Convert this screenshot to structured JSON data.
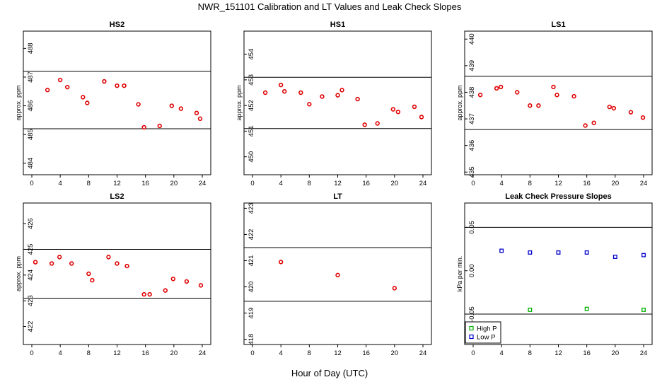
{
  "title": "NWR_151101  Calibration and LT Values and Leak Check Slopes",
  "xlabel": "Hour of Day (UTC)",
  "chart_data": [
    {
      "type": "scatter",
      "title": "HS2",
      "ylabel": "approx. ppm",
      "xlim": [
        0,
        24
      ],
      "ylim": [
        483.6,
        488.6
      ],
      "yticks": [
        484,
        485,
        486,
        487,
        488
      ],
      "xticks": [
        0,
        4,
        8,
        12,
        16,
        20,
        24
      ],
      "hlines": [
        487.2,
        485.2
      ],
      "series": [
        {
          "marker": "circle",
          "color": "#e00000",
          "x": [
            2.2,
            4.0,
            5.0,
            7.2,
            7.8,
            10.2,
            12.0,
            13.0,
            15.0,
            15.8,
            18.0,
            19.7,
            21.0,
            23.2,
            23.7
          ],
          "y": [
            486.55,
            486.9,
            486.65,
            486.3,
            486.1,
            486.85,
            486.7,
            486.7,
            486.05,
            485.25,
            485.3,
            486.0,
            485.9,
            485.75,
            485.55
          ]
        }
      ]
    },
    {
      "type": "scatter",
      "title": "HS1",
      "ylabel": "approx. ppm",
      "xlim": [
        0,
        24
      ],
      "ylim": [
        449.3,
        454.9
      ],
      "yticks": [
        450,
        451,
        452,
        453,
        454
      ],
      "xticks": [
        0,
        4,
        8,
        12,
        16,
        20,
        24
      ],
      "hlines": [
        453.1,
        451.1
      ],
      "series": [
        {
          "marker": "circle",
          "color": "#e00000",
          "x": [
            1.8,
            4.0,
            4.5,
            6.8,
            8.0,
            9.8,
            12.0,
            12.6,
            14.8,
            15.8,
            17.6,
            19.8,
            20.5,
            22.8,
            23.8
          ],
          "y": [
            452.5,
            452.8,
            452.55,
            452.5,
            452.05,
            452.35,
            452.4,
            452.6,
            452.25,
            451.25,
            451.3,
            451.85,
            451.75,
            451.95,
            451.55
          ]
        }
      ]
    },
    {
      "type": "scatter",
      "title": "LS1",
      "ylabel": "approx. ppm",
      "xlim": [
        0,
        24
      ],
      "ylim": [
        434.9,
        440.3
      ],
      "yticks": [
        435,
        436,
        437,
        438,
        439,
        440
      ],
      "xticks": [
        0,
        4,
        8,
        12,
        16,
        20,
        24
      ],
      "hlines": [
        438.6,
        436.6
      ],
      "series": [
        {
          "marker": "circle",
          "color": "#e00000",
          "x": [
            1.0,
            3.3,
            3.9,
            6.2,
            8.0,
            9.2,
            11.3,
            11.8,
            14.2,
            15.8,
            17.0,
            19.2,
            19.8,
            22.2,
            23.9
          ],
          "y": [
            437.9,
            438.15,
            438.2,
            438.0,
            437.5,
            437.5,
            438.2,
            437.9,
            437.85,
            436.75,
            436.85,
            437.45,
            437.4,
            437.25,
            437.05
          ]
        }
      ]
    },
    {
      "type": "scatter",
      "title": "LS2",
      "ylabel": "approx. ppm",
      "xlim": [
        0,
        24
      ],
      "ylim": [
        421.3,
        426.8
      ],
      "yticks": [
        422,
        423,
        424,
        425,
        426
      ],
      "xticks": [
        0,
        4,
        8,
        12,
        16,
        20,
        24
      ],
      "hlines": [
        425.0,
        423.1
      ],
      "series": [
        {
          "marker": "circle",
          "color": "#e00000",
          "x": [
            0.5,
            2.8,
            3.9,
            5.6,
            8.0,
            8.5,
            10.8,
            12.0,
            13.4,
            15.8,
            16.6,
            18.8,
            19.9,
            21.8,
            23.8
          ],
          "y": [
            424.5,
            424.45,
            424.7,
            424.45,
            424.05,
            423.8,
            424.7,
            424.45,
            424.35,
            423.25,
            423.25,
            423.4,
            423.85,
            423.75,
            423.6
          ]
        }
      ]
    },
    {
      "type": "scatter",
      "title": "LT",
      "ylabel": "",
      "xlim": [
        0,
        24
      ],
      "ylim": [
        417.8,
        423.2
      ],
      "yticks": [
        418,
        419,
        420,
        421,
        422,
        423
      ],
      "xticks": [
        0,
        4,
        8,
        12,
        16,
        20,
        24
      ],
      "hlines": [
        421.5,
        419.45
      ],
      "series": [
        {
          "marker": "circle",
          "color": "#e00000",
          "x": [
            4.0,
            12.0,
            20.0
          ],
          "y": [
            420.95,
            420.45,
            419.95
          ]
        }
      ]
    },
    {
      "type": "scatter",
      "title": "Leak Check Pressure Slopes",
      "ylabel": "kPa per min.",
      "xlim": [
        0,
        24
      ],
      "ylim": [
        -0.085,
        0.078
      ],
      "yticks": [
        -0.05,
        0.0,
        0.05
      ],
      "ytick_labels": [
        "-0.05",
        "0.00",
        "0.05"
      ],
      "xticks": [
        0,
        4,
        8,
        12,
        16,
        20,
        24
      ],
      "hlines": [
        0.05,
        -0.05
      ],
      "legend": {
        "position": "bottom-left",
        "entries": [
          "High P",
          "Low P"
        ]
      },
      "series": [
        {
          "name": "High P",
          "marker": "square",
          "color": "#00b000",
          "x": [
            8.0,
            16.0,
            24.0
          ],
          "y": [
            -0.045,
            -0.044,
            -0.045
          ]
        },
        {
          "name": "Low P",
          "marker": "square",
          "color": "#0000cc",
          "x": [
            4.0,
            8.0,
            12.0,
            16.0,
            20.0,
            24.0
          ],
          "y": [
            0.023,
            0.021,
            0.021,
            0.021,
            0.016,
            0.018
          ]
        }
      ]
    }
  ]
}
